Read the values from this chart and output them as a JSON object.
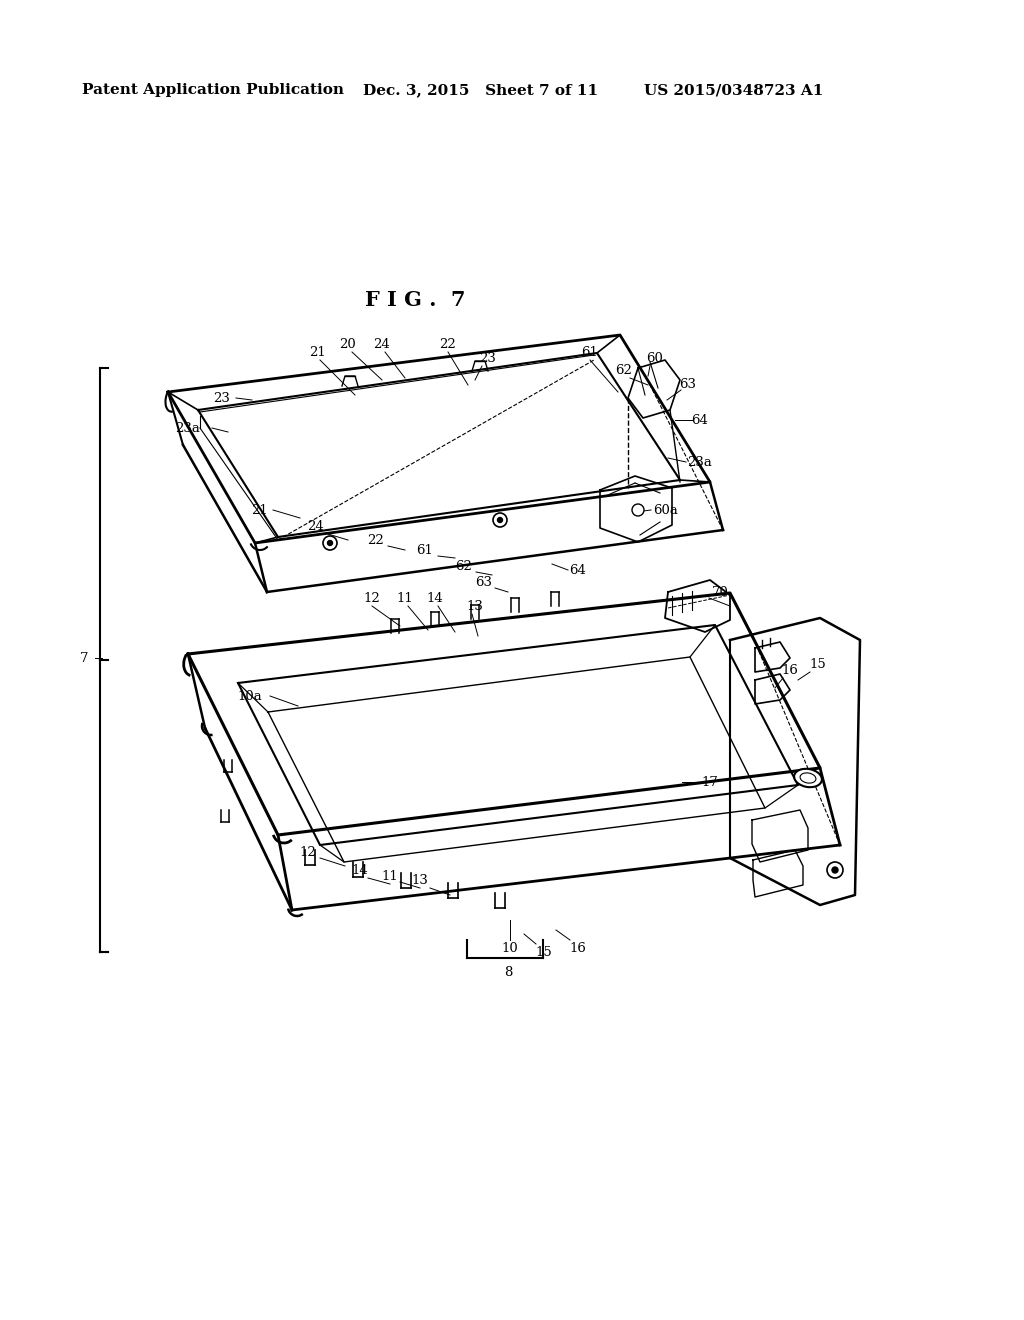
{
  "background_color": "#ffffff",
  "page_header_left": "Patent Application Publication",
  "page_header_mid": "Dec. 3, 2015   Sheet 7 of 11",
  "page_header_right": "US 2015/0348723 A1",
  "fig_label": "F I G .  7"
}
